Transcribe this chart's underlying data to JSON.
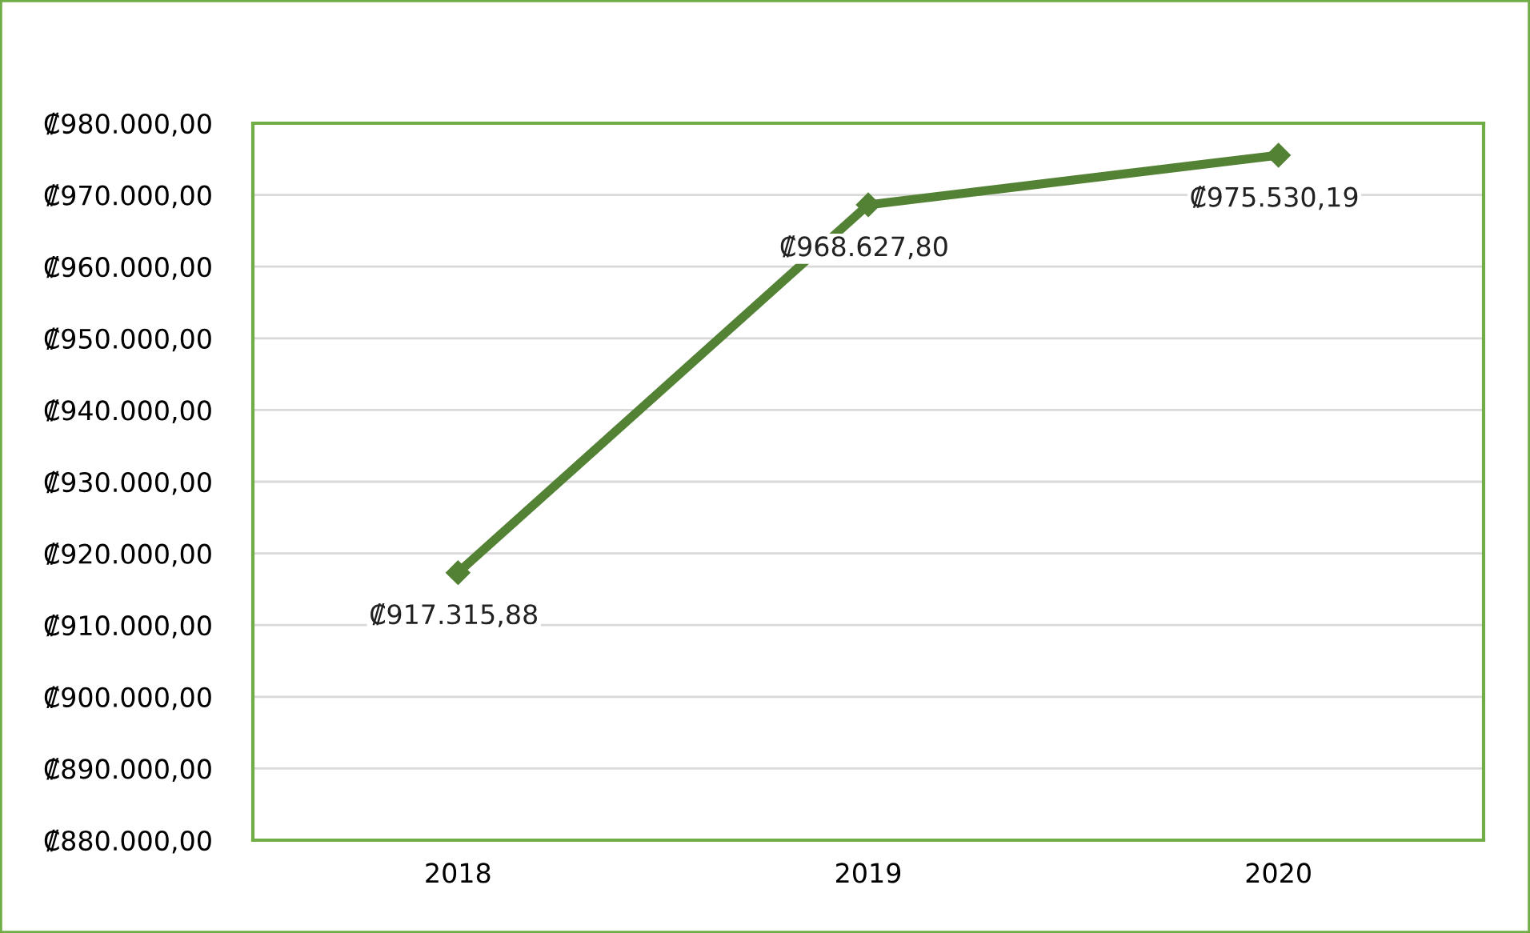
{
  "chart_data": {
    "type": "line",
    "categories": [
      "2018",
      "2019",
      "2020"
    ],
    "series": [
      {
        "color": "#548235",
        "values": [
          917315.88,
          968627.8,
          975530.19
        ],
        "value_labels": [
          "₡917.315,88",
          "₡968.627,80",
          "₡975.530,19"
        ]
      }
    ],
    "ylim": [
      880000,
      980000
    ],
    "yticks": [
      {
        "value": 880000,
        "label": "₡880.000,00"
      },
      {
        "value": 890000,
        "label": "₡890.000,00"
      },
      {
        "value": 900000,
        "label": "₡900.000,00"
      },
      {
        "value": 910000,
        "label": "₡910.000,00"
      },
      {
        "value": 920000,
        "label": "₡920.000,00"
      },
      {
        "value": 930000,
        "label": "₡930.000,00"
      },
      {
        "value": 940000,
        "label": "₡940.000,00"
      },
      {
        "value": 950000,
        "label": "₡950.000,00"
      },
      {
        "value": 960000,
        "label": "₡960.000,00"
      },
      {
        "value": 970000,
        "label": "₡970.000,00"
      },
      {
        "value": 980000,
        "label": "₡980.000,00"
      }
    ],
    "grid": "y",
    "marker": "diamond",
    "line_style": "solid",
    "legend": false
  }
}
